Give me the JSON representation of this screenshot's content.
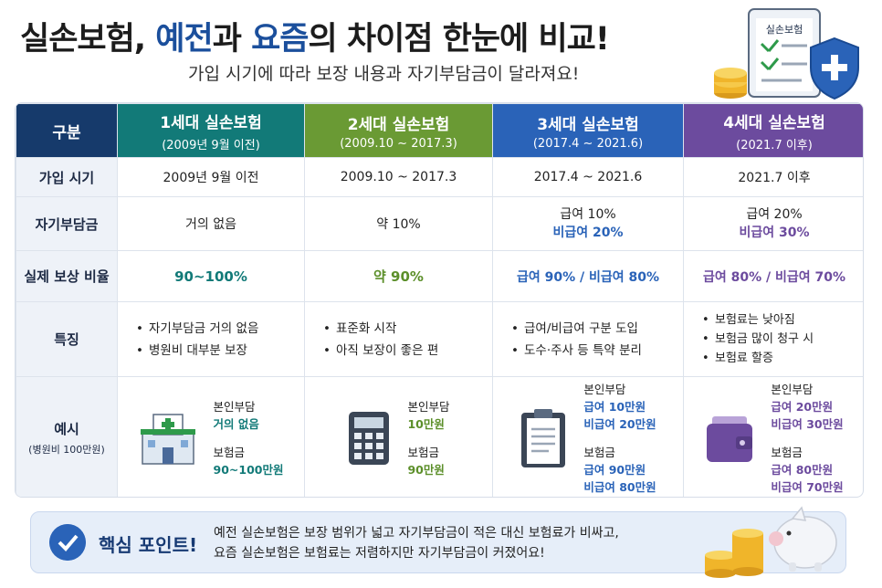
{
  "title": {
    "part1": "실손보험, ",
    "accent1": "예전",
    "part2": "과 ",
    "accent2": "요즘",
    "part3": "의 차이점 한눈에 비교!"
  },
  "subtitle": "가입 시기에 따라 보장 내용과 자기부담금이 달라져요!",
  "badge_label": "실손보험",
  "colors": {
    "navy": "#163a6b",
    "gen1": "#127a78",
    "gen2": "#6a9a34",
    "gen3": "#2a63b8",
    "gen4": "#6c4b9e"
  },
  "table": {
    "corner": "구분",
    "columns": [
      {
        "name": "1세대 실손보험",
        "period": "(2009년 9월 이전)"
      },
      {
        "name": "2세대 실손보험",
        "period": "(2009.10 ~ 2017.3)"
      },
      {
        "name": "3세대 실손보험",
        "period": "(2017.4 ~ 2021.6)"
      },
      {
        "name": "4세대 실손보험",
        "period": "(2021.7 이후)"
      }
    ],
    "rows": {
      "join": {
        "label": "가입 시기",
        "values": [
          "2009년 9월 이전",
          "2009.10 ~ 2017.3",
          "2017.4 ~ 2021.6",
          "2021.7 이후"
        ]
      },
      "deductible": {
        "label": "자기부담금",
        "c1": "거의 없음",
        "c2": "약 10%",
        "c3a": "급여 10%",
        "c3b": "비급여 20%",
        "c4a": "급여 20%",
        "c4b": "비급여 30%"
      },
      "ratio": {
        "label": "실제 보상 비율",
        "values": [
          "90~100%",
          "약 90%",
          "급여 90% / 비급여 80%",
          "급여 80% / 비급여 70%"
        ]
      },
      "features": {
        "label": "특징",
        "c1": [
          "자기부담금 거의 없음",
          "병원비 대부분 보장"
        ],
        "c2": [
          "표준화 시작",
          "아직 보장이 좋은 편"
        ],
        "c3": [
          "급여/비급여 구분 도입",
          "도수·주사 등 특약 분리"
        ],
        "c4": [
          "보험료는 낮아짐",
          "보험금 많이 청구 시",
          "보험료 할증"
        ]
      },
      "example": {
        "label": "예시",
        "sub": "(병원비 100만원)",
        "c1": {
          "self_label": "본인부담",
          "self_value": "거의 없음",
          "ins_label": "보험금",
          "ins_value": "90~100만원"
        },
        "c2": {
          "self_label": "본인부담",
          "self_value": "10만원",
          "ins_label": "보험금",
          "ins_value": "90만원"
        },
        "c3": {
          "self_label": "본인부담",
          "self_a": "급여 10만원",
          "self_b": "비급여 20만원",
          "ins_label": "보험금",
          "ins_a": "급여 90만원",
          "ins_b": "비급여 80만원"
        },
        "c4": {
          "self_label": "본인부담",
          "self_a": "급여 20만원",
          "self_b": "비급여 30만원",
          "ins_label": "보험금",
          "ins_a": "급여 80만원",
          "ins_b": "비급여 70만원"
        }
      }
    }
  },
  "key_point": {
    "title": "핵심 포인트!",
    "line1": "예전 실손보험은 보장 범위가 넓고 자기부담금이 적은 대신 보험료가 비싸고,",
    "line2": "요즘 실손보험은 보험료는 저렴하지만 자기부담금이 커졌어요!"
  }
}
